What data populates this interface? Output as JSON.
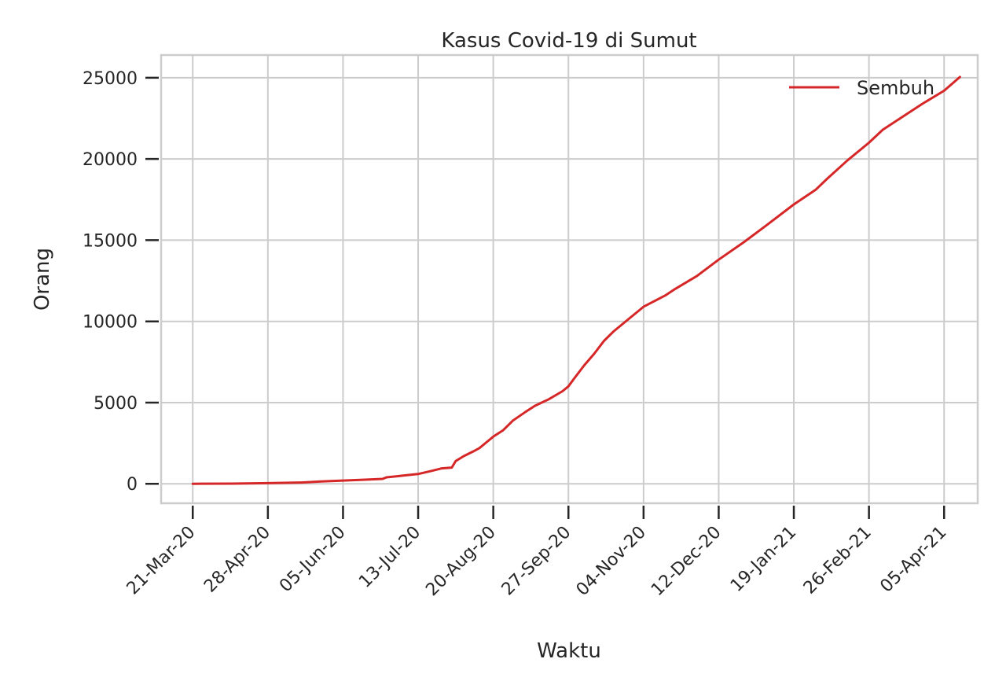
{
  "chart_data": {
    "type": "line",
    "title": "Kasus Covid-19 di Sumut",
    "xlabel": "Waktu",
    "ylabel": "Orang",
    "x_axis": "date",
    "x_range": [
      "2020-03-05",
      "2021-04-22"
    ],
    "ylim": [
      -1200,
      26400
    ],
    "y_ticks": [
      0,
      5000,
      10000,
      15000,
      20000,
      25000
    ],
    "x_ticks": [
      {
        "date": "2020-03-21",
        "label": "21-Mar-20"
      },
      {
        "date": "2020-04-28",
        "label": "28-Apr-20"
      },
      {
        "date": "2020-06-05",
        "label": "05-Jun-20"
      },
      {
        "date": "2020-07-13",
        "label": "13-Jul-20"
      },
      {
        "date": "2020-08-20",
        "label": "20-Aug-20"
      },
      {
        "date": "2020-09-27",
        "label": "27-Sep-20"
      },
      {
        "date": "2020-11-04",
        "label": "04-Nov-20"
      },
      {
        "date": "2020-12-12",
        "label": "12-Dec-20"
      },
      {
        "date": "2021-01-19",
        "label": "19-Jan-21"
      },
      {
        "date": "2021-02-26",
        "label": "26-Feb-21"
      },
      {
        "date": "2021-04-05",
        "label": "05-Apr-21"
      }
    ],
    "grid": true,
    "legend_position": "top-right",
    "colors": {
      "series": "#d62728",
      "grid": "#cccccc",
      "text": "#262626"
    },
    "series": [
      {
        "name": "Sembuh",
        "points": [
          [
            "2020-03-21",
            0
          ],
          [
            "2020-04-10",
            10
          ],
          [
            "2020-04-28",
            40
          ],
          [
            "2020-05-15",
            80
          ],
          [
            "2020-05-25",
            140
          ],
          [
            "2020-06-05",
            200
          ],
          [
            "2020-06-15",
            250
          ],
          [
            "2020-06-25",
            300
          ],
          [
            "2020-06-27",
            400
          ],
          [
            "2020-07-05",
            500
          ],
          [
            "2020-07-13",
            600
          ],
          [
            "2020-07-20",
            800
          ],
          [
            "2020-07-25",
            950
          ],
          [
            "2020-07-30",
            1000
          ],
          [
            "2020-08-01",
            1400
          ],
          [
            "2020-08-05",
            1700
          ],
          [
            "2020-08-10",
            2000
          ],
          [
            "2020-08-13",
            2200
          ],
          [
            "2020-08-17",
            2600
          ],
          [
            "2020-08-20",
            2900
          ],
          [
            "2020-08-25",
            3300
          ],
          [
            "2020-08-30",
            3900
          ],
          [
            "2020-09-05",
            4400
          ],
          [
            "2020-09-10",
            4800
          ],
          [
            "2020-09-17",
            5200
          ],
          [
            "2020-09-24",
            5700
          ],
          [
            "2020-09-27",
            6000
          ],
          [
            "2020-09-30",
            6500
          ],
          [
            "2020-10-05",
            7300
          ],
          [
            "2020-10-10",
            8000
          ],
          [
            "2020-10-15",
            8800
          ],
          [
            "2020-10-20",
            9400
          ],
          [
            "2020-10-27",
            10100
          ],
          [
            "2020-11-04",
            10900
          ],
          [
            "2020-11-15",
            11600
          ],
          [
            "2020-11-20",
            12000
          ],
          [
            "2020-12-01",
            12800
          ],
          [
            "2020-12-12",
            13800
          ],
          [
            "2020-12-25",
            14900
          ],
          [
            "2021-01-05",
            15900
          ],
          [
            "2021-01-19",
            17200
          ],
          [
            "2021-01-30",
            18100
          ],
          [
            "2021-02-05",
            18800
          ],
          [
            "2021-02-15",
            19900
          ],
          [
            "2021-02-26",
            21000
          ],
          [
            "2021-03-05",
            21800
          ],
          [
            "2021-03-15",
            22600
          ],
          [
            "2021-03-25",
            23400
          ],
          [
            "2021-04-05",
            24200
          ],
          [
            "2021-04-13",
            25050
          ]
        ]
      }
    ]
  }
}
